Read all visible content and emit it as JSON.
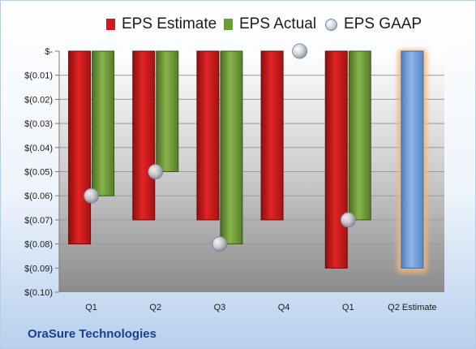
{
  "company_name": "OraSure Technologies",
  "colors": {
    "estimate": "#d01a1a",
    "actual": "#6f9c3a",
    "gaap": "#c4cad3",
    "forward_estimate": "#6c98d6",
    "highlight": "#f3b877"
  },
  "chart_data": {
    "type": "bar",
    "categories": [
      "Q1",
      "Q2",
      "Q3",
      "Q4",
      "Q1",
      "Q2 Estimate"
    ],
    "series": [
      {
        "name": "EPS Estimate",
        "values": [
          -0.08,
          -0.07,
          -0.07,
          -0.07,
          -0.09,
          -0.09
        ]
      },
      {
        "name": "EPS Actual",
        "values": [
          -0.06,
          -0.05,
          -0.08,
          null,
          -0.07,
          null
        ]
      },
      {
        "name": "EPS GAAP",
        "values": [
          -0.06,
          -0.05,
          -0.08,
          0.0,
          -0.07,
          null
        ]
      }
    ],
    "yticks": [
      "$-",
      "$(0.01)",
      "$(0.02)",
      "$(0.03)",
      "$(0.04)",
      "$(0.05)",
      "$(0.06)",
      "$(0.07)",
      "$(0.08)",
      "$(0.09)",
      "$(0.10)"
    ],
    "ylim": [
      -0.1,
      0
    ],
    "legend_position": "top",
    "grid": true
  }
}
